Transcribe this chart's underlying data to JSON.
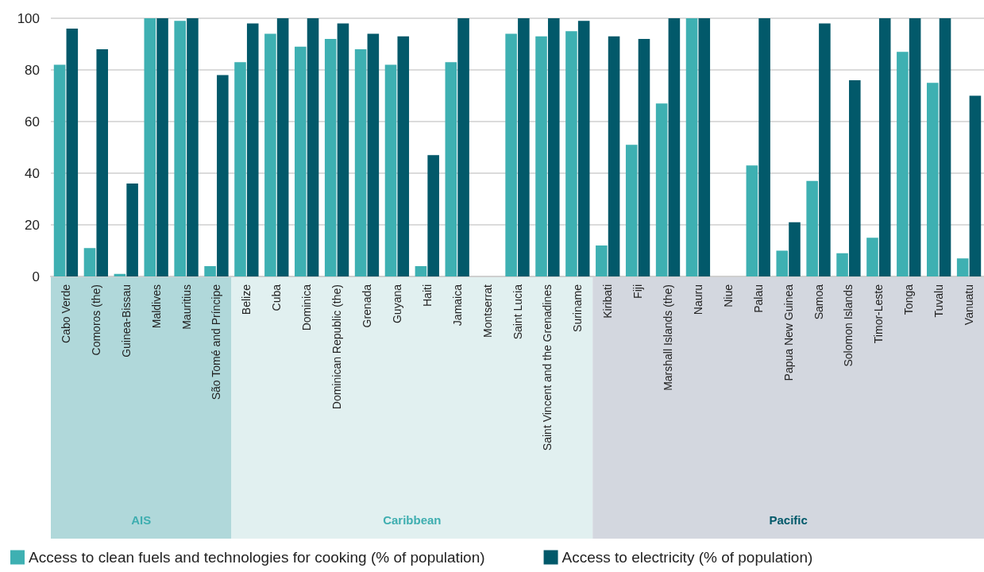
{
  "chart_data": {
    "type": "bar",
    "categories": [
      "Cabo Verde",
      "Comoros (the)",
      "Guinea-Bissau",
      "Maldives",
      "Mauritius",
      "São Tomé and Príncipe",
      "Belize",
      "Cuba",
      "Dominica",
      "Dominican Republic (the)",
      "Grenada",
      "Guyana",
      "Haiti",
      "Jamaica",
      "Montserrat",
      "Saint Lucia",
      "Saint Vincent and the Grenadines",
      "Suriname",
      "Kiribati",
      "Fiji",
      "Marshall Islands (the)",
      "Nauru",
      "Niue",
      "Palau",
      "Papua New Guinea",
      "Samoa",
      "Solomon Islands",
      "Timor-Leste",
      "Tonga",
      "Tuvalu",
      "Vanuatu"
    ],
    "series": [
      {
        "name": "Access to clean fuels and technologies for cooking (% of population)",
        "color": "#3eb0b2",
        "values": [
          82,
          11,
          1,
          100,
          99,
          4,
          83,
          94,
          89,
          92,
          88,
          82,
          4,
          83,
          null,
          94,
          93,
          95,
          12,
          51,
          67,
          100,
          null,
          43,
          10,
          37,
          9,
          15,
          87,
          75,
          7
        ]
      },
      {
        "name": "Access to electricity (% of population)",
        "color": "#02596a",
        "values": [
          96,
          88,
          36,
          100,
          100,
          78,
          98,
          100,
          100,
          98,
          94,
          93,
          47,
          100,
          null,
          100,
          100,
          99,
          93,
          92,
          100,
          100,
          null,
          100,
          21,
          98,
          76,
          100,
          100,
          100,
          70
        ]
      }
    ],
    "ylim": [
      0,
      100
    ],
    "yticks": [
      0,
      20,
      40,
      60,
      80,
      100
    ],
    "grid": "y",
    "legend": "bottom",
    "annotations": [
      "AIS",
      "Caribbean",
      "Pacific"
    ]
  }
}
